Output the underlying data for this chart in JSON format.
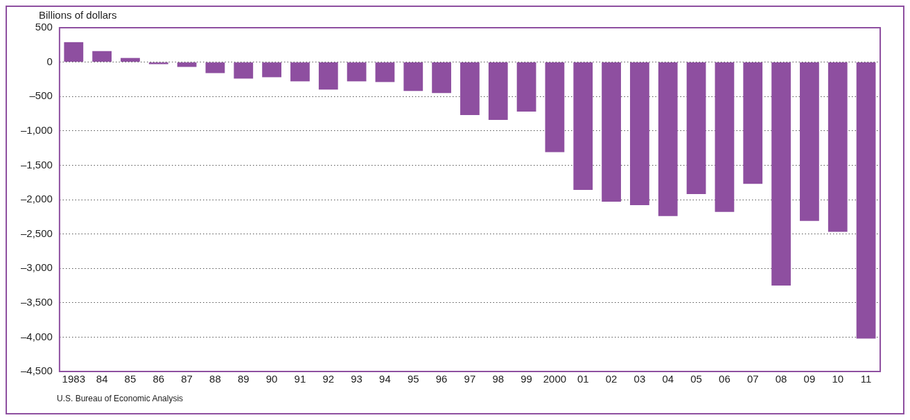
{
  "chart_data": {
    "type": "bar",
    "ylabel": "Billions of dollars",
    "categories": [
      "1983",
      "84",
      "85",
      "86",
      "87",
      "88",
      "89",
      "90",
      "91",
      "92",
      "93",
      "94",
      "95",
      "96",
      "97",
      "98",
      "99",
      "2000",
      "01",
      "02",
      "03",
      "04",
      "05",
      "06",
      "07",
      "08",
      "09",
      "10",
      "11"
    ],
    "values": [
      290,
      160,
      60,
      -30,
      -70,
      -160,
      -240,
      -220,
      -280,
      -400,
      -280,
      -290,
      -420,
      -450,
      -770,
      -840,
      -720,
      -1310,
      -1860,
      -2030,
      -2080,
      -2240,
      -1920,
      -2180,
      -1770,
      -3250,
      -2310,
      -2470,
      -4020
    ],
    "color": "#8e4fa0",
    "ylim": [
      -4500,
      500
    ],
    "yticks": [
      {
        "value": 500,
        "label": "500"
      },
      {
        "value": 0,
        "label": "0"
      },
      {
        "value": -500,
        "label": "–500"
      },
      {
        "value": -1000,
        "label": "–1,000"
      },
      {
        "value": -1500,
        "label": "–1,500"
      },
      {
        "value": -2000,
        "label": "–2,000"
      },
      {
        "value": -2500,
        "label": "–2,500"
      },
      {
        "value": -3000,
        "label": "–3,000"
      },
      {
        "value": -3500,
        "label": "–3,500"
      },
      {
        "value": -4000,
        "label": "–4,000"
      },
      {
        "value": -4500,
        "label": "–4,500"
      }
    ],
    "grid": "y",
    "annotations": [
      "U.S. Bureau of Economic Analysis"
    ]
  }
}
